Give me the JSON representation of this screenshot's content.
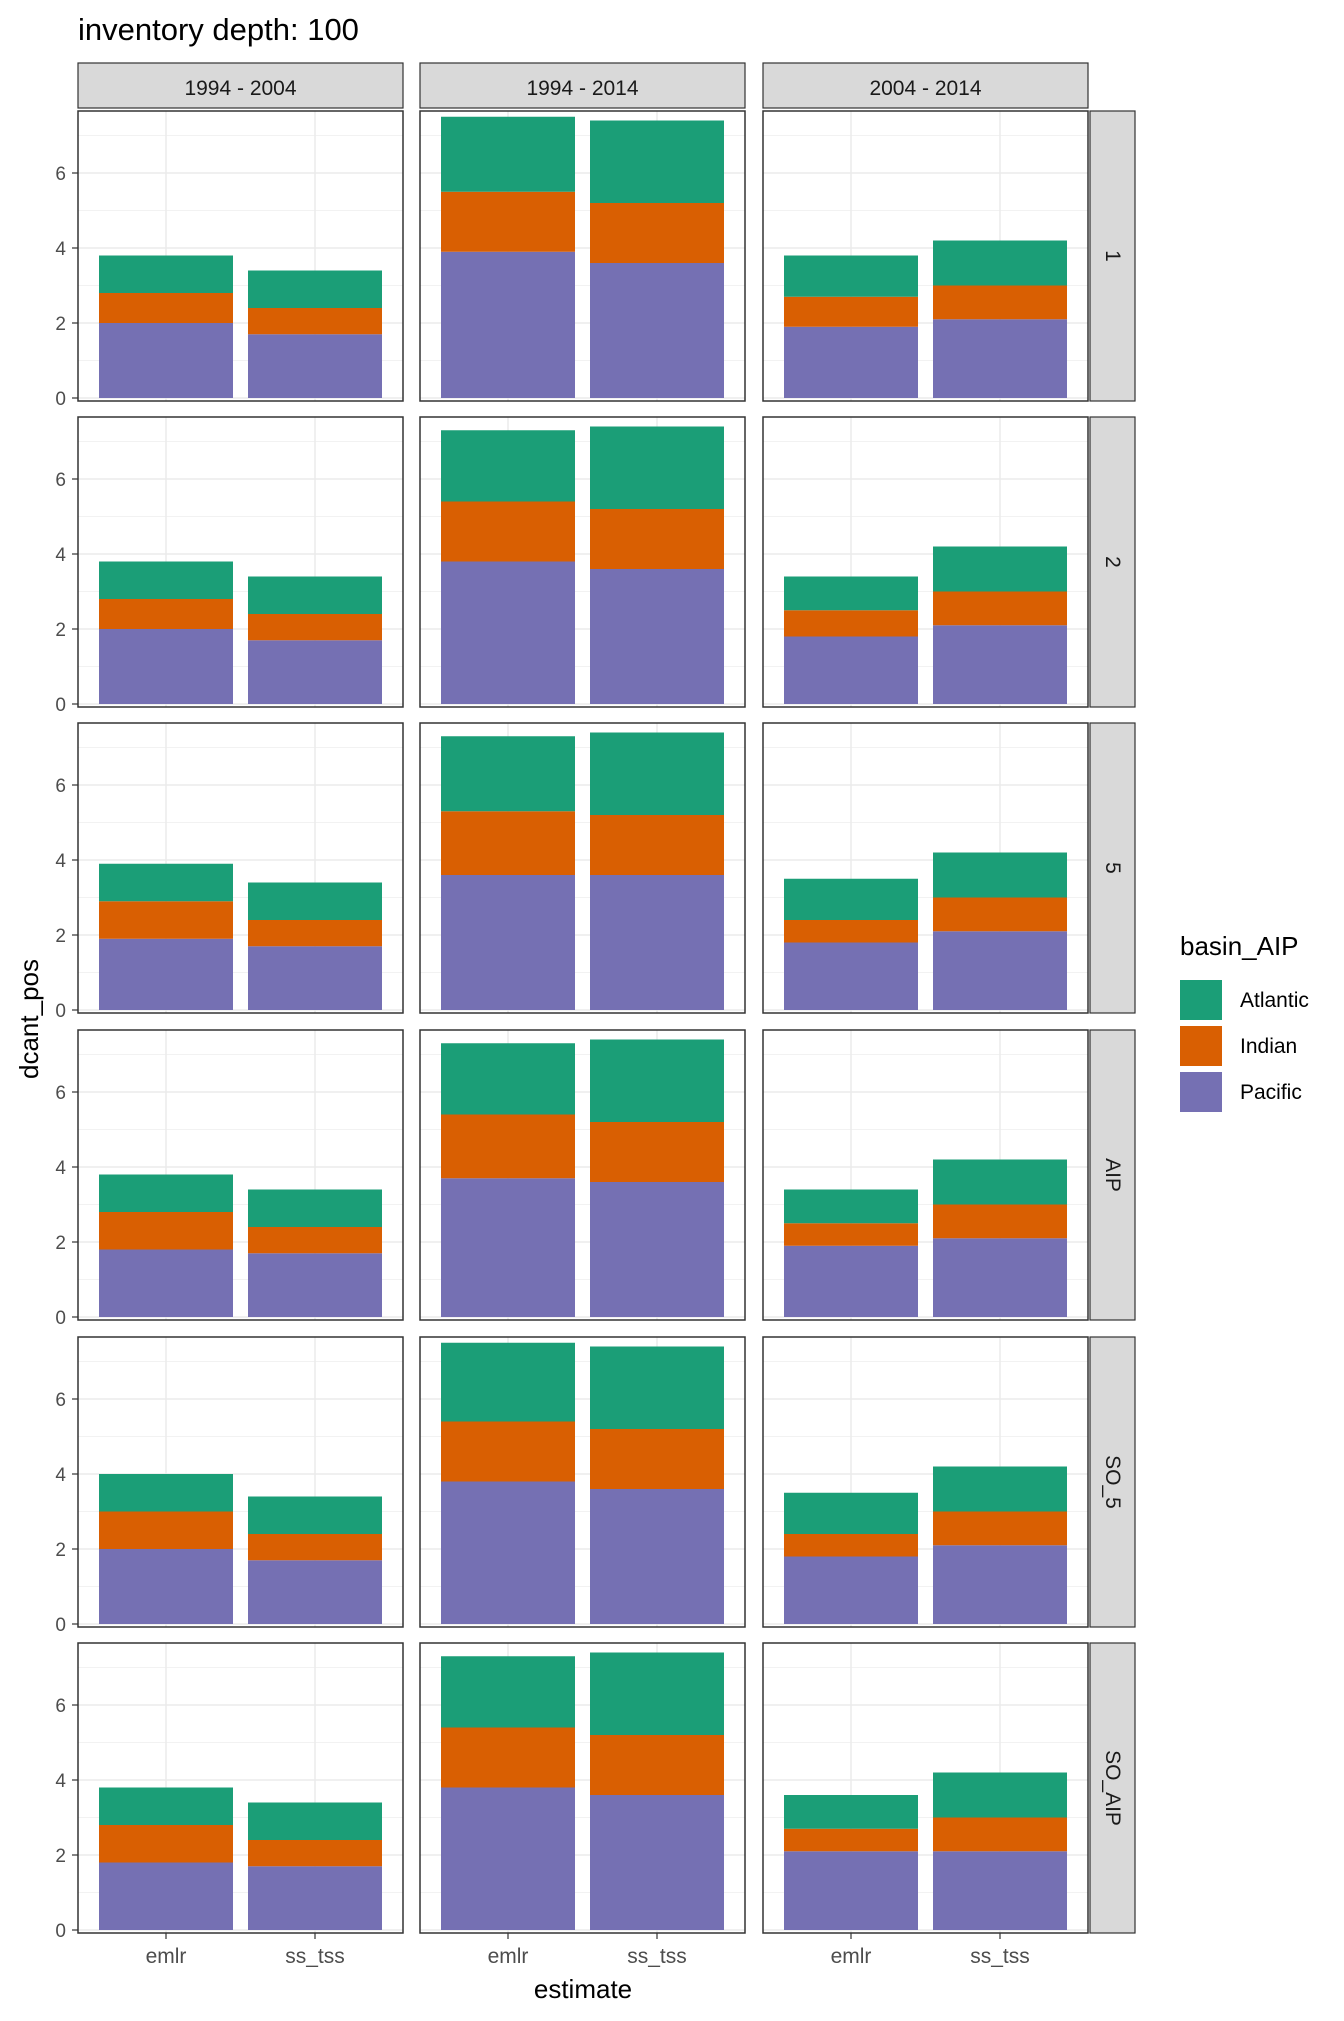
{
  "chart_data": {
    "type": "bar",
    "stacked": true,
    "title": "inventory depth: 100",
    "xlabel": "estimate",
    "ylabel": "dcant_pos",
    "ylim": [
      0,
      7.6
    ],
    "yticks": [
      0,
      2,
      4,
      6
    ],
    "grid": true,
    "legend": {
      "title": "basin_AIP",
      "position": "right",
      "entries": [
        "Atlantic",
        "Indian",
        "Pacific"
      ]
    },
    "colors": {
      "Atlantic": "#1b9e77",
      "Indian": "#d95f02",
      "Pacific": "#7570b3"
    },
    "categories": [
      "emlr",
      "ss_tss"
    ],
    "column_facets": [
      "1994 - 2004",
      "1994 - 2014",
      "2004 - 2014"
    ],
    "row_facets": [
      "1",
      "2",
      "5",
      "AIP",
      "SO_5",
      "SO_AIP"
    ],
    "stack_order_bottom_to_top": [
      "Pacific",
      "Indian",
      "Atlantic"
    ],
    "panels": [
      {
        "row": "1",
        "col": "1994 - 2004",
        "values": {
          "emlr": {
            "Pacific": 2.0,
            "Indian": 0.8,
            "Atlantic": 1.0
          },
          "ss_tss": {
            "Pacific": 1.7,
            "Indian": 0.7,
            "Atlantic": 1.0
          }
        }
      },
      {
        "row": "1",
        "col": "1994 - 2014",
        "values": {
          "emlr": {
            "Pacific": 3.9,
            "Indian": 1.6,
            "Atlantic": 2.0
          },
          "ss_tss": {
            "Pacific": 3.6,
            "Indian": 1.6,
            "Atlantic": 2.2
          }
        }
      },
      {
        "row": "1",
        "col": "2004 - 2014",
        "values": {
          "emlr": {
            "Pacific": 1.9,
            "Indian": 0.8,
            "Atlantic": 1.1
          },
          "ss_tss": {
            "Pacific": 2.1,
            "Indian": 0.9,
            "Atlantic": 1.2
          }
        }
      },
      {
        "row": "2",
        "col": "1994 - 2004",
        "values": {
          "emlr": {
            "Pacific": 2.0,
            "Indian": 0.8,
            "Atlantic": 1.0
          },
          "ss_tss": {
            "Pacific": 1.7,
            "Indian": 0.7,
            "Atlantic": 1.0
          }
        }
      },
      {
        "row": "2",
        "col": "1994 - 2014",
        "values": {
          "emlr": {
            "Pacific": 3.8,
            "Indian": 1.6,
            "Atlantic": 1.9
          },
          "ss_tss": {
            "Pacific": 3.6,
            "Indian": 1.6,
            "Atlantic": 2.2
          }
        }
      },
      {
        "row": "2",
        "col": "2004 - 2014",
        "values": {
          "emlr": {
            "Pacific": 1.8,
            "Indian": 0.7,
            "Atlantic": 0.9
          },
          "ss_tss": {
            "Pacific": 2.1,
            "Indian": 0.9,
            "Atlantic": 1.2
          }
        }
      },
      {
        "row": "5",
        "col": "1994 - 2004",
        "values": {
          "emlr": {
            "Pacific": 1.9,
            "Indian": 1.0,
            "Atlantic": 1.0
          },
          "ss_tss": {
            "Pacific": 1.7,
            "Indian": 0.7,
            "Atlantic": 1.0
          }
        }
      },
      {
        "row": "5",
        "col": "1994 - 2014",
        "values": {
          "emlr": {
            "Pacific": 3.6,
            "Indian": 1.7,
            "Atlantic": 2.0
          },
          "ss_tss": {
            "Pacific": 3.6,
            "Indian": 1.6,
            "Atlantic": 2.2
          }
        }
      },
      {
        "row": "5",
        "col": "2004 - 2014",
        "values": {
          "emlr": {
            "Pacific": 1.8,
            "Indian": 0.6,
            "Atlantic": 1.1
          },
          "ss_tss": {
            "Pacific": 2.1,
            "Indian": 0.9,
            "Atlantic": 1.2
          }
        }
      },
      {
        "row": "AIP",
        "col": "1994 - 2004",
        "values": {
          "emlr": {
            "Pacific": 1.8,
            "Indian": 1.0,
            "Atlantic": 1.0
          },
          "ss_tss": {
            "Pacific": 1.7,
            "Indian": 0.7,
            "Atlantic": 1.0
          }
        }
      },
      {
        "row": "AIP",
        "col": "1994 - 2014",
        "values": {
          "emlr": {
            "Pacific": 3.7,
            "Indian": 1.7,
            "Atlantic": 1.9
          },
          "ss_tss": {
            "Pacific": 3.6,
            "Indian": 1.6,
            "Atlantic": 2.2
          }
        }
      },
      {
        "row": "AIP",
        "col": "2004 - 2014",
        "values": {
          "emlr": {
            "Pacific": 1.9,
            "Indian": 0.6,
            "Atlantic": 0.9
          },
          "ss_tss": {
            "Pacific": 2.1,
            "Indian": 0.9,
            "Atlantic": 1.2
          }
        }
      },
      {
        "row": "SO_5",
        "col": "1994 - 2004",
        "values": {
          "emlr": {
            "Pacific": 2.0,
            "Indian": 1.0,
            "Atlantic": 1.0
          },
          "ss_tss": {
            "Pacific": 1.7,
            "Indian": 0.7,
            "Atlantic": 1.0
          }
        }
      },
      {
        "row": "SO_5",
        "col": "1994 - 2014",
        "values": {
          "emlr": {
            "Pacific": 3.8,
            "Indian": 1.6,
            "Atlantic": 2.1
          },
          "ss_tss": {
            "Pacific": 3.6,
            "Indian": 1.6,
            "Atlantic": 2.2
          }
        }
      },
      {
        "row": "SO_5",
        "col": "2004 - 2014",
        "values": {
          "emlr": {
            "Pacific": 1.8,
            "Indian": 0.6,
            "Atlantic": 1.1
          },
          "ss_tss": {
            "Pacific": 2.1,
            "Indian": 0.9,
            "Atlantic": 1.2
          }
        }
      },
      {
        "row": "SO_AIP",
        "col": "1994 - 2004",
        "values": {
          "emlr": {
            "Pacific": 1.8,
            "Indian": 1.0,
            "Atlantic": 1.0
          },
          "ss_tss": {
            "Pacific": 1.7,
            "Indian": 0.7,
            "Atlantic": 1.0
          }
        }
      },
      {
        "row": "SO_AIP",
        "col": "1994 - 2014",
        "values": {
          "emlr": {
            "Pacific": 3.8,
            "Indian": 1.6,
            "Atlantic": 1.9
          },
          "ss_tss": {
            "Pacific": 3.6,
            "Indian": 1.6,
            "Atlantic": 2.2
          }
        }
      },
      {
        "row": "SO_AIP",
        "col": "2004 - 2014",
        "values": {
          "emlr": {
            "Pacific": 2.1,
            "Indian": 0.6,
            "Atlantic": 0.9
          },
          "ss_tss": {
            "Pacific": 2.1,
            "Indian": 0.9,
            "Atlantic": 1.2
          }
        }
      }
    ]
  }
}
